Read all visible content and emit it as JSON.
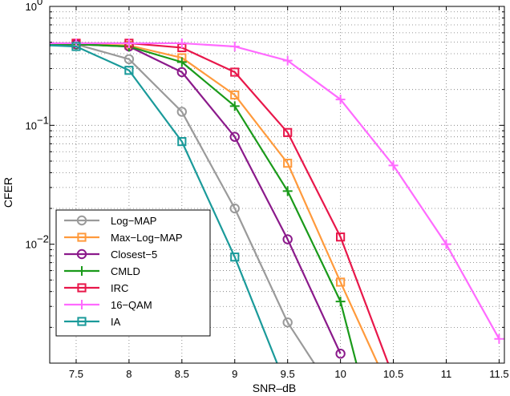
{
  "chart_data": {
    "type": "line",
    "xlabel": "SNR–dB",
    "ylabel": "CFER",
    "yscale": "log",
    "xlim": [
      7.25,
      11.55
    ],
    "ylim": [
      0.001,
      1
    ],
    "grid": true,
    "legend_position": "bottom-left",
    "x_ticks": [
      {
        "v": 7.5,
        "label": "7.5"
      },
      {
        "v": 8,
        "label": "8"
      },
      {
        "v": 8.5,
        "label": "8.5"
      },
      {
        "v": 9,
        "label": "9"
      },
      {
        "v": 9.5,
        "label": "9.5"
      },
      {
        "v": 10,
        "label": "10"
      },
      {
        "v": 10.5,
        "label": "10.5"
      },
      {
        "v": 11,
        "label": "11"
      },
      {
        "v": 11.5,
        "label": "11.5"
      }
    ],
    "y_ticks": [
      {
        "v": 1,
        "base": "10",
        "exp": "0"
      },
      {
        "v": 0.1,
        "base": "10",
        "exp": "−1"
      },
      {
        "v": 0.01,
        "base": "10",
        "exp": "−2"
      }
    ],
    "series": [
      {
        "name": "Log−MAP",
        "color": "#9a9a9a",
        "marker": "circle",
        "x": [
          7.25,
          7.5,
          8,
          8.5,
          9,
          9.5,
          9.75
        ],
        "y": [
          0.47,
          0.48,
          0.36,
          0.13,
          0.02,
          0.0022,
          0.001
        ],
        "markers": [
          false,
          true,
          true,
          true,
          true,
          true,
          false
        ]
      },
      {
        "name": "Max−Log−MAP",
        "color": "#ff9a3c",
        "marker": "square",
        "x": [
          7.25,
          7.5,
          8,
          8.5,
          9,
          9.5,
          10,
          10.35
        ],
        "y": [
          0.48,
          0.48,
          0.47,
          0.37,
          0.18,
          0.048,
          0.0048,
          0.001
        ],
        "markers": [
          false,
          true,
          true,
          true,
          true,
          true,
          true,
          false
        ]
      },
      {
        "name": "Closest−5",
        "color": "#8b1a8b",
        "marker": "circle",
        "x": [
          7.25,
          7.5,
          8,
          8.5,
          9,
          9.5,
          10
        ],
        "y": [
          0.48,
          0.48,
          0.46,
          0.28,
          0.08,
          0.011,
          0.0012
        ],
        "markers": [
          false,
          true,
          true,
          true,
          true,
          true,
          true
        ]
      },
      {
        "name": "CMLD",
        "color": "#1a9a1a",
        "marker": "plus",
        "x": [
          7.25,
          7.5,
          8,
          8.5,
          9,
          9.5,
          10,
          10.15
        ],
        "y": [
          0.48,
          0.48,
          0.46,
          0.34,
          0.145,
          0.028,
          0.0033,
          0.001
        ],
        "markers": [
          false,
          true,
          true,
          true,
          true,
          true,
          true,
          false
        ]
      },
      {
        "name": "IRC",
        "color": "#e8174a",
        "marker": "square",
        "x": [
          7.25,
          7.5,
          8,
          8.5,
          9,
          9.5,
          10,
          10.45
        ],
        "y": [
          0.49,
          0.49,
          0.49,
          0.45,
          0.28,
          0.087,
          0.0115,
          0.001
        ],
        "markers": [
          false,
          true,
          true,
          true,
          true,
          true,
          true,
          false
        ]
      },
      {
        "name": "16−QAM",
        "color": "#ff6aff",
        "marker": "plus",
        "x": [
          7.25,
          7.5,
          8,
          8.5,
          9,
          9.5,
          10,
          10.5,
          11,
          11.5
        ],
        "y": [
          0.49,
          0.49,
          0.49,
          0.49,
          0.46,
          0.35,
          0.165,
          0.046,
          0.01,
          0.0016
        ],
        "markers": [
          false,
          true,
          true,
          true,
          true,
          true,
          true,
          true,
          true,
          true
        ]
      },
      {
        "name": "IA",
        "color": "#1a9a9a",
        "marker": "square",
        "x": [
          7.25,
          7.5,
          8,
          8.5,
          9,
          9.4
        ],
        "y": [
          0.47,
          0.46,
          0.29,
          0.073,
          0.0078,
          0.001
        ],
        "markers": [
          false,
          true,
          true,
          true,
          true,
          false
        ]
      }
    ]
  }
}
